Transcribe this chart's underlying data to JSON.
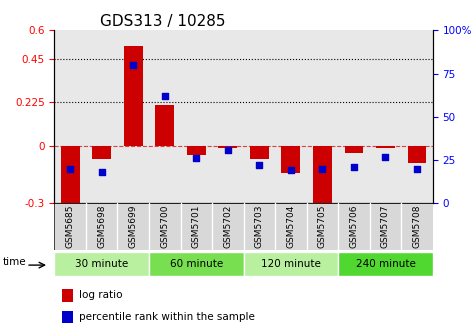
{
  "title": "GDS313 / 10285",
  "samples": [
    "GSM5685",
    "GSM5698",
    "GSM5699",
    "GSM5700",
    "GSM5701",
    "GSM5702",
    "GSM5703",
    "GSM5704",
    "GSM5705",
    "GSM5706",
    "GSM5707",
    "GSM5708"
  ],
  "log_ratio": [
    -0.32,
    -0.07,
    0.52,
    0.21,
    -0.05,
    -0.01,
    -0.07,
    -0.14,
    -0.36,
    -0.04,
    -0.01,
    -0.09
  ],
  "percentile": [
    20,
    18,
    80,
    62,
    26,
    31,
    22,
    19,
    20,
    21,
    27,
    20
  ],
  "groups": [
    {
      "label": "30 minute",
      "start": 0,
      "end": 3,
      "color": "#b8f0a0"
    },
    {
      "label": "60 minute",
      "start": 3,
      "end": 6,
      "color": "#78e050"
    },
    {
      "label": "120 minute",
      "start": 6,
      "end": 9,
      "color": "#b8f0a0"
    },
    {
      "label": "240 minute",
      "start": 9,
      "end": 12,
      "color": "#50d830"
    }
  ],
  "bar_color": "#cc0000",
  "dot_color": "#0000cc",
  "ylim_left": [
    -0.3,
    0.6
  ],
  "ylim_right": [
    0,
    100
  ],
  "yticks_left": [
    -0.3,
    0,
    0.225,
    0.45,
    0.6
  ],
  "yticks_right": [
    0,
    25,
    50,
    75,
    100
  ],
  "hlines": [
    0.45,
    0.225
  ],
  "title_fontsize": 11,
  "legend_items": [
    "log ratio",
    "percentile rank within the sample"
  ],
  "time_label": "time",
  "sample_bg_color": "#d8d8d8"
}
